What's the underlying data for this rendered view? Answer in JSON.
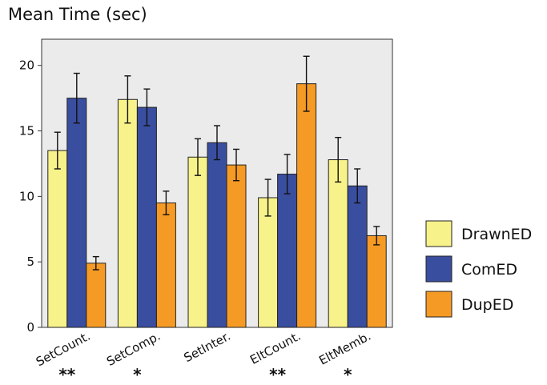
{
  "chart_data": {
    "type": "bar",
    "title": "Mean Time (sec)",
    "categories": [
      "SetCount.",
      "SetComp.",
      "SetInter.",
      "EltCount.",
      "EltMemb."
    ],
    "significance": [
      "**",
      "*",
      "",
      "**",
      "*"
    ],
    "ylim": [
      0,
      22
    ],
    "yticks": [
      0,
      5,
      10,
      15,
      20
    ],
    "grid": false,
    "legend_position": "right",
    "series": [
      {
        "name": "DrawnED",
        "color": "#f8f28a",
        "values": [
          13.5,
          17.4,
          13.0,
          9.9,
          12.8
        ],
        "error": [
          1.4,
          1.8,
          1.4,
          1.4,
          1.7
        ]
      },
      {
        "name": "ComED",
        "color": "#3a4ea0",
        "values": [
          17.5,
          16.8,
          14.1,
          11.7,
          10.8
        ],
        "error": [
          1.9,
          1.4,
          1.3,
          1.5,
          1.3
        ]
      },
      {
        "name": "DupED",
        "color": "#f59a24",
        "values": [
          4.9,
          9.5,
          12.4,
          18.6,
          7.0
        ],
        "error": [
          0.5,
          0.9,
          1.2,
          2.1,
          0.7
        ]
      }
    ]
  }
}
